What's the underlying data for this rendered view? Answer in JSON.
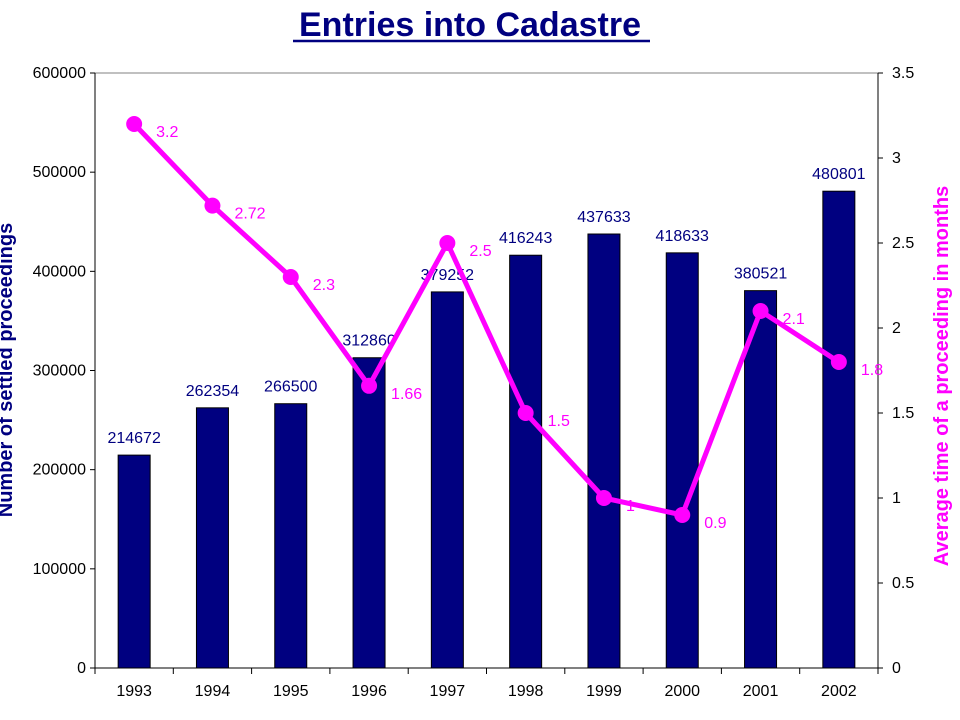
{
  "chart_data": {
    "type": "bar",
    "title": "Entries into Cadastre",
    "categories": [
      "1993",
      "1994",
      "1995",
      "1996",
      "1997",
      "1998",
      "1999",
      "2000",
      "2001",
      "2002"
    ],
    "series": [
      {
        "type": "bar",
        "axis": "left",
        "values": [
          214672,
          262354,
          266500,
          312860,
          379252,
          416243,
          437633,
          418633,
          380521,
          480801
        ],
        "data_labels": [
          "214672",
          "262354",
          "266500",
          "312860",
          "379252",
          "416243",
          "437633",
          "418633",
          "380521",
          "480801"
        ]
      },
      {
        "type": "line",
        "axis": "right",
        "values": [
          3.2,
          2.72,
          2.3,
          1.66,
          2.5,
          1.5,
          1,
          0.9,
          2.1,
          1.8
        ],
        "data_labels": [
          "3.2",
          "2.72",
          "2.3",
          "1.66",
          "2.5",
          "1.5",
          "1",
          "0.9",
          "2.1",
          "1.8"
        ]
      }
    ],
    "ylabel": "Number of settled proceedings",
    "y2label": "Average time of a proceeding in months",
    "ylim": [
      0,
      600000
    ],
    "y2lim": [
      0,
      3.5
    ],
    "yticks": [
      "0",
      "100000",
      "200000",
      "300000",
      "400000",
      "500000",
      "600000"
    ],
    "y2ticks": [
      "0",
      "0.5",
      "1",
      "1.5",
      "2",
      "2.5",
      "3",
      "3.5"
    ],
    "grid": false,
    "legend": "none",
    "colors": {
      "bar": "#000080",
      "line": "#ff00ff",
      "bar_label": "#000080",
      "line_label": "#ff00ff"
    }
  }
}
